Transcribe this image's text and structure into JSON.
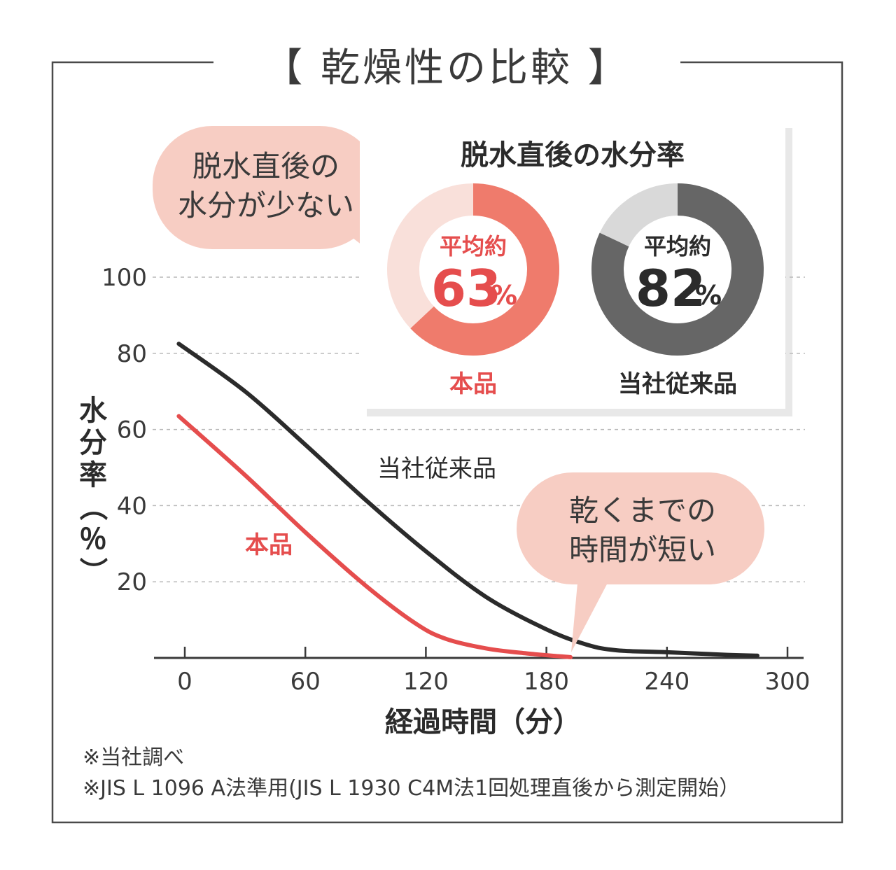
{
  "title": "【 乾燥性の比較 】",
  "colors": {
    "product": "#e54d4d",
    "product_donut": "#ef7b6c",
    "product_donut_light": "#f9e0da",
    "legacy": "#2b2b2b",
    "legacy_donut": "#666666",
    "legacy_donut_light": "#d9d9d9",
    "bubble": "#f7cdc3"
  },
  "chart_data": [
    {
      "type": "line",
      "xlabel": "経過時間（分）",
      "ylabel": "水分率（％）",
      "xticks": [
        "0",
        "60",
        "120",
        "180",
        "240",
        "300"
      ],
      "yticks": [
        "20",
        "40",
        "60",
        "80",
        "100"
      ],
      "xlim": [
        0,
        300
      ],
      "ylim": [
        0,
        100
      ],
      "grid": true,
      "series": [
        {
          "name": "当社従来品",
          "color": "#2b2b2b",
          "points": [
            [
              -3,
              82.5
            ],
            [
              30,
              70
            ],
            [
              60,
              56
            ],
            [
              90,
              41.5
            ],
            [
              120,
              28
            ],
            [
              150,
              16
            ],
            [
              180,
              7.5
            ],
            [
              200,
              3.5
            ],
            [
              215,
              2
            ],
            [
              240,
              1.5
            ],
            [
              270,
              0.8
            ],
            [
              285,
              0.6
            ]
          ]
        },
        {
          "name": "本品",
          "color": "#e54d4d",
          "points": [
            [
              -3,
              63.5
            ],
            [
              30,
              48
            ],
            [
              60,
              33
            ],
            [
              90,
              19
            ],
            [
              115,
              9
            ],
            [
              130,
              5
            ],
            [
              150,
              2.5
            ],
            [
              170,
              1.2
            ],
            [
              192,
              0.2
            ]
          ]
        }
      ],
      "annotations": [
        {
          "text_lines": [
            "脱水直後の",
            "水分が少ない"
          ]
        },
        {
          "text_lines": [
            "乾くまでの",
            "時間が短い"
          ]
        }
      ]
    },
    {
      "type": "pie",
      "title": "脱水直後の水分率",
      "items": [
        {
          "label": "本品",
          "prefix": "平均約",
          "value": 63,
          "unit": "%",
          "text": "63"
        },
        {
          "label": "当社従来品",
          "prefix": "平均約",
          "value": 82,
          "unit": "%",
          "text": "82"
        }
      ]
    }
  ],
  "footnotes": [
    "※当社調べ",
    "※JIS L 1096 A法準用(JIS L 1930 C4M法1回処理直後から測定開始）"
  ]
}
